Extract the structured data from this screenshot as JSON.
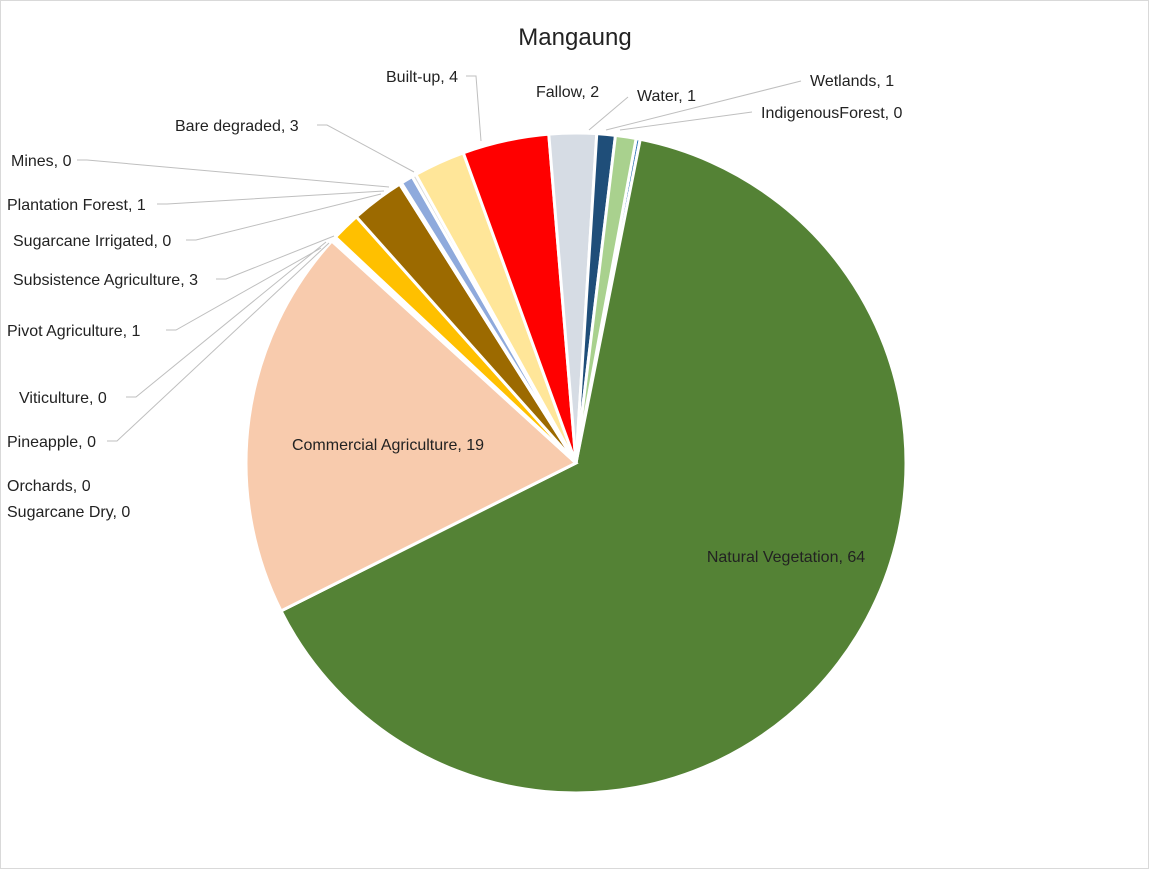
{
  "chart_data": {
    "type": "pie",
    "title": "Mangaung",
    "slices": [
      {
        "name": "IndigenousForest",
        "value": 0.2,
        "label": "IndigenousForest, 0",
        "color": "#2e75b6"
      },
      {
        "name": "Natural Vegetation",
        "value": 64,
        "label": "Natural Vegetation, 64",
        "color": "#548235"
      },
      {
        "name": "Commercial Agriculture",
        "value": 19,
        "label": "Commercial Agriculture, 19",
        "color": "#f8cbad"
      },
      {
        "name": "Orchards",
        "value": 0.05,
        "label": "Orchards, 0",
        "color": "#7f6000"
      },
      {
        "name": "Sugarcane Dry",
        "value": 0.05,
        "label": "Sugarcane Dry, 0",
        "color": "#c55a11"
      },
      {
        "name": "Pineapple",
        "value": 0.05,
        "label": "Pineapple, 0",
        "color": "#a9d18e"
      },
      {
        "name": "Viticulture",
        "value": 0.1,
        "label": "Viticulture, 0",
        "color": "#833c0b"
      },
      {
        "name": "Pivot  Agriculture",
        "value": 1.4,
        "label": "Pivot  Agriculture, 1",
        "color": "#ffc000"
      },
      {
        "name": "Subsistence Agriculture",
        "value": 2.6,
        "label": "Subsistence Agriculture, 3",
        "color": "#9c6a00"
      },
      {
        "name": "Sugarcane Irrigated",
        "value": 0.1,
        "label": "Sugarcane Irrigated, 0",
        "color": "#70ad47"
      },
      {
        "name": "Plantation Forest",
        "value": 0.6,
        "label": "Plantation Forest, 1",
        "color": "#8faadc"
      },
      {
        "name": "Mines",
        "value": 0.2,
        "label": "Mines, 0",
        "color": "#d9d9d9"
      },
      {
        "name": "Bare degraded",
        "value": 2.5,
        "label": "Bare degraded, 3",
        "color": "#ffe699"
      },
      {
        "name": "Built-up",
        "value": 4.2,
        "label": "Built-up, 4",
        "color": "#ff0000"
      },
      {
        "name": "Fallow",
        "value": 2.3,
        "label": "Fallow, 2",
        "color": "#d6dce4"
      },
      {
        "name": "Water",
        "value": 0.9,
        "label": "Water, 1",
        "color": "#1f4e79"
      },
      {
        "name": "Wetlands",
        "value": 1.0,
        "label": "Wetlands, 1",
        "color": "#a9d18e"
      }
    ]
  }
}
